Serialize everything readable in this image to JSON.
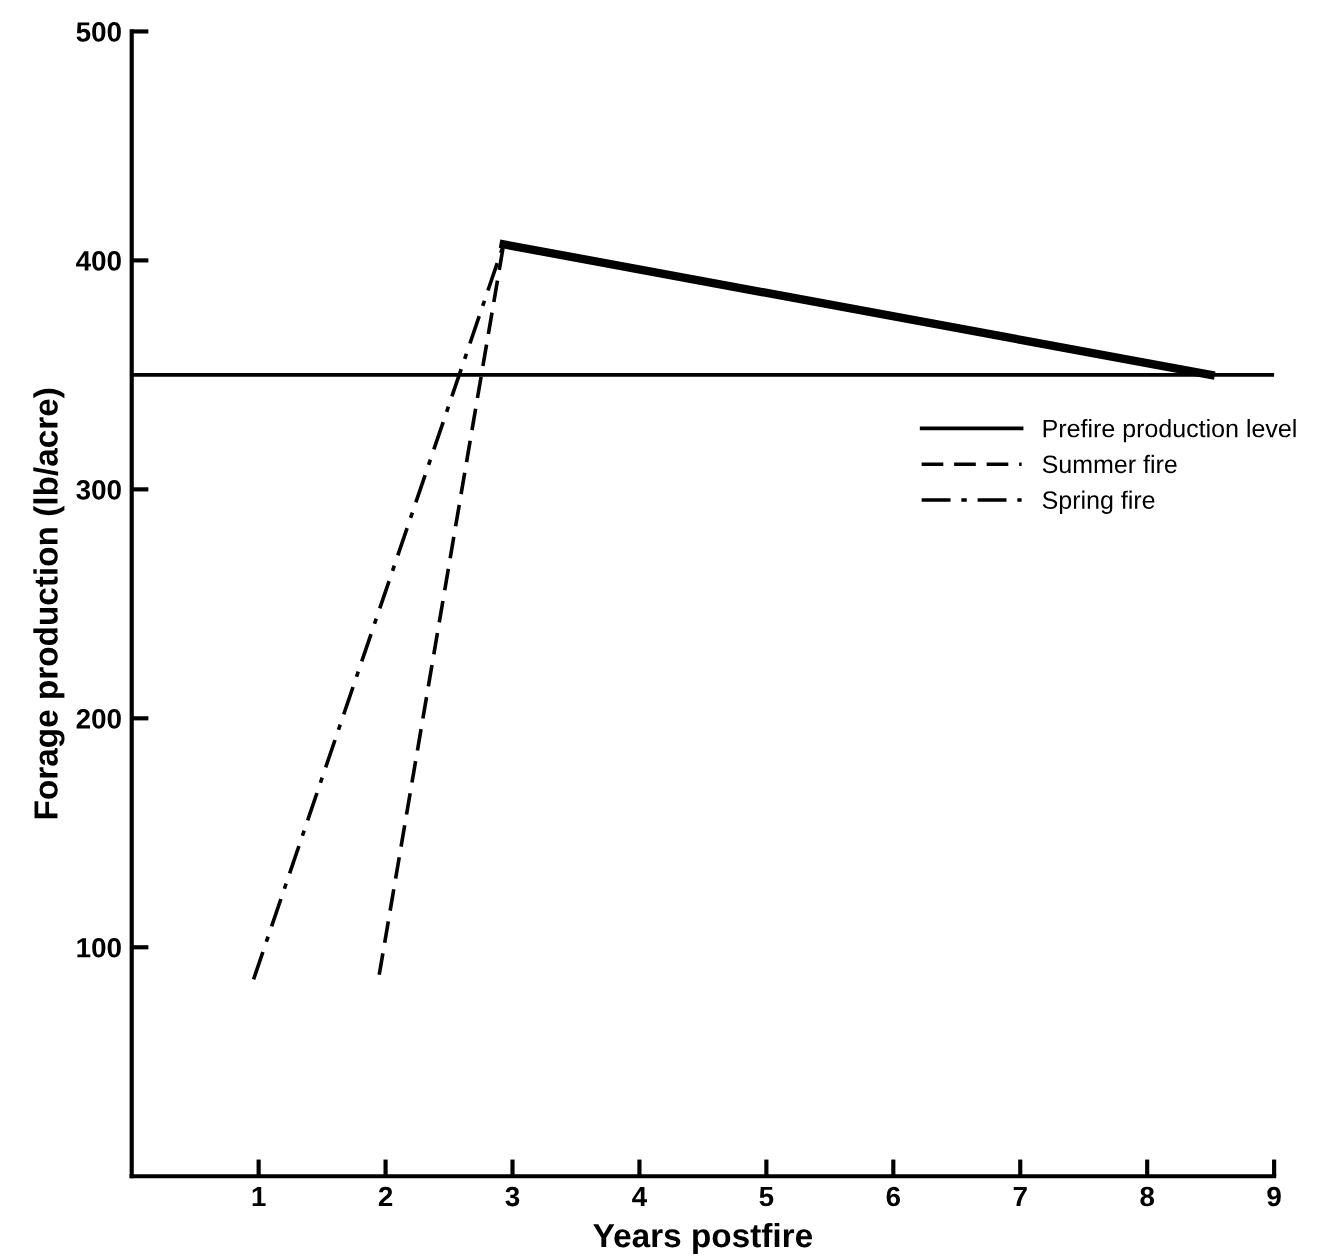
{
  "chart_data": {
    "type": "line",
    "xlabel": "Years postfire",
    "ylabel": "Forage production (lb/acre)",
    "xlim": [
      0,
      9
    ],
    "ylim": [
      0,
      500
    ],
    "xticks": [
      1,
      2,
      3,
      4,
      5,
      6,
      7,
      8,
      9
    ],
    "yticks": [
      100,
      200,
      300,
      400,
      500
    ],
    "grid": false,
    "legend": "right",
    "marker": "none",
    "series": [
      {
        "name": "Prefire production level",
        "color": "#000000",
        "line_style": "solid",
        "x": [
          0,
          9
        ],
        "values": [
          350,
          350
        ]
      },
      {
        "name": "Summer fire",
        "color": "#000000",
        "line_style": "dashed",
        "x": [
          1.95,
          2.93
        ],
        "values": [
          88,
          407
        ]
      },
      {
        "name": "Spring fire",
        "color": "#000000",
        "line_style": "dashdot",
        "x": [
          0.96,
          2.93
        ],
        "values": [
          86,
          407
        ]
      },
      {
        "color": "#000000",
        "line_style": "solid",
        "x": [
          2.93,
          8.5
        ],
        "values": [
          407,
          350
        ]
      }
    ]
  }
}
